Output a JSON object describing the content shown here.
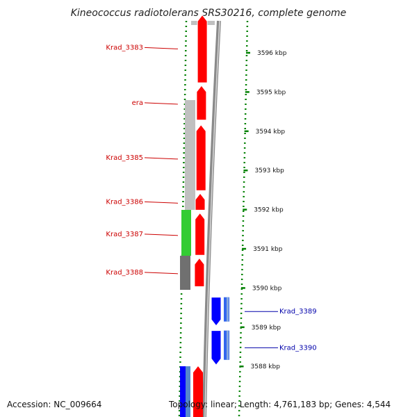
{
  "title": "Kineococcus radiotolerans SRS30216, complete genome",
  "accession": "Accession: NC_009664",
  "topology": "Topology: linear; Length: 4,761,183 bp; Genes: 4,544",
  "colors": {
    "red": "#ff0000",
    "blue": "#0000ff",
    "green": "#33cc33",
    "light_gray": "#c0c0c0",
    "dark_gray": "#707070",
    "dot_green": "#008000",
    "label_red": "#cc0000",
    "label_blue": "#0000aa"
  },
  "scale": [
    {
      "text": "3596 kbp",
      "kb": 3596
    },
    {
      "text": "3595 kbp",
      "kb": 3595
    },
    {
      "text": "3594 kbp",
      "kb": 3594
    },
    {
      "text": "3593 kbp",
      "kb": 3593
    },
    {
      "text": "3592 kbp",
      "kb": 3592
    },
    {
      "text": "3591 kbp",
      "kb": 3591
    },
    {
      "text": "3590 kbp",
      "kb": 3590
    },
    {
      "text": "3589 kbp",
      "kb": 3589
    },
    {
      "text": "3588 kbp",
      "kb": 3588
    }
  ],
  "genes": [
    {
      "label": "Krad_3383",
      "strand": "reverse",
      "start_kb": 3595.2,
      "end_kb": 3597.0,
      "color": "red"
    },
    {
      "label": "era",
      "strand": "reverse",
      "start_kb": 3594.25,
      "end_kb": 3595.2,
      "color": "red"
    },
    {
      "label": "Krad_3385",
      "strand": "reverse",
      "start_kb": 3592.45,
      "end_kb": 3594.2,
      "color": "red"
    },
    {
      "label": "Krad_3386",
      "strand": "reverse",
      "start_kb": 3591.95,
      "end_kb": 3592.45,
      "color": "red"
    },
    {
      "label": "Krad_3387",
      "strand": "reverse",
      "start_kb": 3590.8,
      "end_kb": 3591.95,
      "color": "red"
    },
    {
      "label": "Krad_3388",
      "strand": "reverse",
      "start_kb": 3590.0,
      "end_kb": 3590.8,
      "color": "red"
    },
    {
      "label": "Krad_3389",
      "strand": "forward",
      "start_kb": 3589.0,
      "end_kb": 3589.8,
      "color": "blue"
    },
    {
      "label": "Krad_3390",
      "strand": "forward",
      "start_kb": 3588.0,
      "end_kb": 3588.95,
      "color": "blue"
    }
  ]
}
